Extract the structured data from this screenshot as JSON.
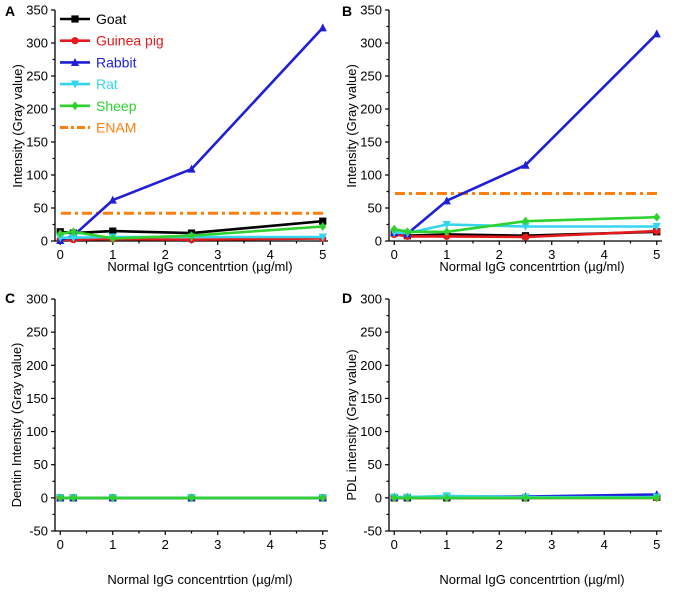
{
  "chart_data": [
    {
      "panel": "A",
      "type": "line",
      "xlabel": "Normal IgG concentrtion (µg/ml)",
      "ylabel": "Intensity (Gray value)",
      "xlim": [
        -0.1,
        5.1
      ],
      "ylim": [
        0,
        350
      ],
      "xticks": [
        "0",
        "1",
        "2",
        "3",
        "4",
        "5"
      ],
      "yticks": [
        "0",
        "50",
        "100",
        "150",
        "200",
        "250",
        "300",
        "350"
      ],
      "x": [
        0,
        0.25,
        1,
        2.5,
        5
      ],
      "series": [
        {
          "name": "Goat",
          "color": "#000000",
          "marker": "square",
          "values": [
            14,
            12,
            15,
            12,
            30
          ]
        },
        {
          "name": "Guinea pig",
          "color": "#e41a1c",
          "marker": "circle",
          "values": [
            2,
            2,
            3,
            2,
            4
          ]
        },
        {
          "name": "Rabbit",
          "color": "#1f1fd6",
          "marker": "triangle-up",
          "values": [
            1,
            8,
            62,
            109,
            323
          ]
        },
        {
          "name": "Rat",
          "color": "#33d6ee",
          "marker": "triangle-down",
          "values": [
            5,
            5,
            6,
            6,
            6
          ]
        },
        {
          "name": "Sheep",
          "color": "#2ed12e",
          "marker": "diamond",
          "values": [
            11,
            14,
            4,
            8,
            22
          ]
        }
      ],
      "reference": {
        "name": "ENAM",
        "color": "#ff7f0e",
        "value": 42
      },
      "legend": {
        "placement": "top-left",
        "items": [
          "Goat",
          "Guinea pig",
          "Rabbit",
          "Rat",
          "Sheep",
          "ENAM"
        ]
      }
    },
    {
      "panel": "B",
      "type": "line",
      "xlabel": "Normal IgG concentrtion (µg/ml)",
      "ylabel": "Intensity (Gray value)",
      "xlim": [
        -0.1,
        5.1
      ],
      "ylim": [
        0,
        350
      ],
      "xticks": [
        "0",
        "1",
        "2",
        "3",
        "4",
        "5"
      ],
      "yticks": [
        "0",
        "50",
        "100",
        "150",
        "200",
        "250",
        "300",
        "350"
      ],
      "x": [
        0,
        0.25,
        1,
        2.5,
        5
      ],
      "series": [
        {
          "name": "Goat",
          "color": "#000000",
          "marker": "square",
          "values": [
            12,
            8,
            10,
            8,
            14
          ]
        },
        {
          "name": "Guinea pig",
          "color": "#e41a1c",
          "marker": "circle",
          "values": [
            10,
            7,
            7,
            6,
            15
          ]
        },
        {
          "name": "Rabbit",
          "color": "#1f1fd6",
          "marker": "triangle-up",
          "values": [
            13,
            11,
            61,
            115,
            314
          ]
        },
        {
          "name": "Rat",
          "color": "#33d6ee",
          "marker": "triangle-down",
          "values": [
            13,
            12,
            25,
            22,
            22
          ]
        },
        {
          "name": "Sheep",
          "color": "#2ed12e",
          "marker": "diamond",
          "values": [
            18,
            14,
            14,
            30,
            36
          ]
        }
      ],
      "reference": {
        "name": "ENAM",
        "color": "#ff7f0e",
        "value": 72
      }
    },
    {
      "panel": "C",
      "type": "line",
      "xlabel": "Normal IgG concentrtion (µg/ml)",
      "ylabel": "Dentin Intensity (Gray value)",
      "xlim": [
        -0.1,
        5.1
      ],
      "ylim": [
        -50,
        300
      ],
      "xticks": [
        "0",
        "1",
        "2",
        "3",
        "4",
        "5"
      ],
      "yticks": [
        "-50",
        "0",
        "50",
        "100",
        "150",
        "200",
        "250",
        "300"
      ],
      "x": [
        0,
        0.25,
        1,
        2.5,
        5
      ],
      "series": [
        {
          "name": "Goat",
          "color": "#000000",
          "marker": "square",
          "values": [
            0,
            0,
            0,
            0,
            0
          ]
        },
        {
          "name": "Guinea pig",
          "color": "#e41a1c",
          "marker": "circle",
          "values": [
            0,
            0,
            0,
            0,
            0
          ]
        },
        {
          "name": "Rabbit",
          "color": "#1f1fd6",
          "marker": "triangle-up",
          "values": [
            0,
            0,
            0,
            0,
            0
          ]
        },
        {
          "name": "Rat",
          "color": "#33d6ee",
          "marker": "triangle-down",
          "values": [
            0,
            0,
            0,
            0,
            0
          ]
        },
        {
          "name": "Sheep",
          "color": "#2ed12e",
          "marker": "diamond",
          "values": [
            0,
            0,
            0,
            0,
            0
          ]
        }
      ]
    },
    {
      "panel": "D",
      "type": "line",
      "xlabel": "Normal IgG concentrtion (µg/ml)",
      "ylabel": "PDL intensity (Gray value)",
      "xlim": [
        -0.1,
        5.1
      ],
      "ylim": [
        -50,
        300
      ],
      "xticks": [
        "0",
        "1",
        "2",
        "3",
        "4",
        "5"
      ],
      "yticks": [
        "-50",
        "0",
        "50",
        "100",
        "150",
        "200",
        "250",
        "300"
      ],
      "x": [
        0,
        0.25,
        1,
        2.5,
        5
      ],
      "series": [
        {
          "name": "Goat",
          "color": "#000000",
          "marker": "square",
          "values": [
            0,
            0,
            0,
            0,
            1
          ]
        },
        {
          "name": "Guinea pig",
          "color": "#e41a1c",
          "marker": "circle",
          "values": [
            0,
            0,
            0,
            0,
            0
          ]
        },
        {
          "name": "Rabbit",
          "color": "#1f1fd6",
          "marker": "triangle-up",
          "values": [
            1,
            1,
            2,
            2,
            5
          ]
        },
        {
          "name": "Rat",
          "color": "#33d6ee",
          "marker": "triangle-down",
          "values": [
            1,
            1,
            3,
            1,
            1
          ]
        },
        {
          "name": "Sheep",
          "color": "#2ed12e",
          "marker": "diamond",
          "values": [
            0,
            0,
            0,
            0,
            0
          ]
        }
      ]
    }
  ]
}
